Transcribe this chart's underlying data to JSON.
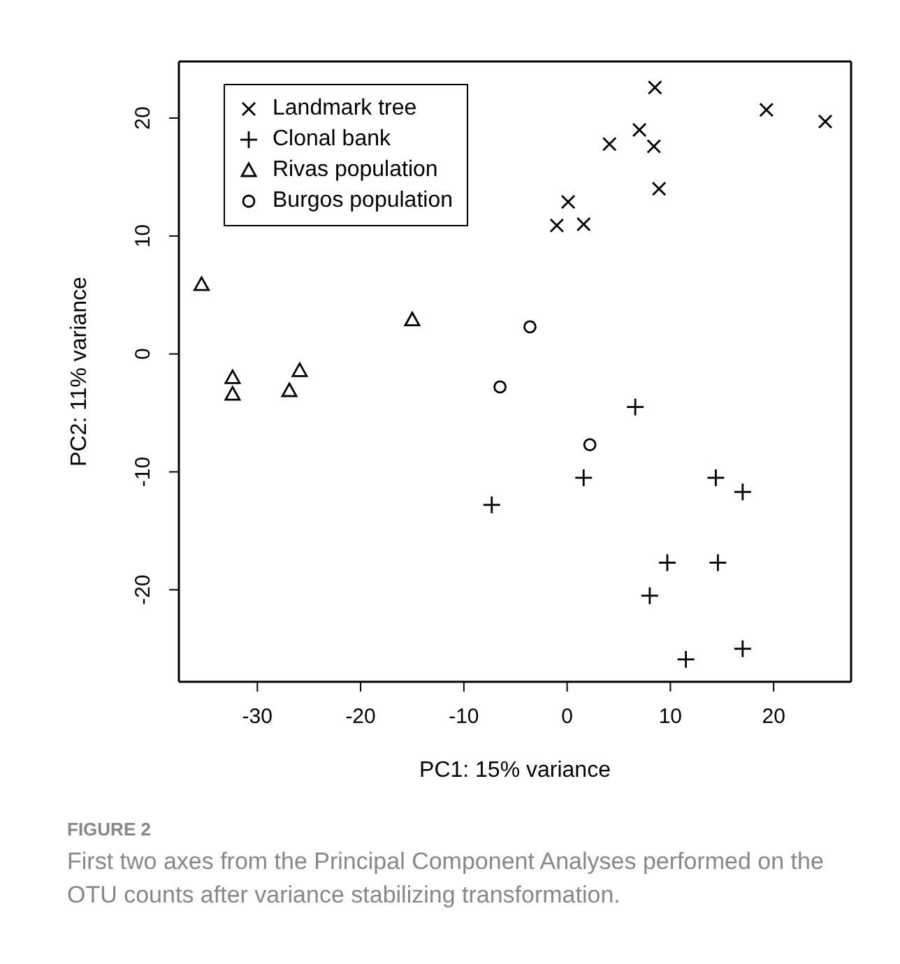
{
  "chart_data": {
    "type": "scatter",
    "xlabel": "PC1: 15% variance",
    "ylabel": "PC2: 11% variance",
    "xlim": [
      -37.6,
      27.5
    ],
    "ylim": [
      -27.8,
      24.8
    ],
    "xticks": [
      -30,
      -20,
      -10,
      0,
      10,
      20
    ],
    "yticks": [
      -20,
      -10,
      0,
      10,
      20
    ],
    "legend": "top left",
    "series": [
      {
        "name": "Landmark tree",
        "color": "#000000",
        "marker": "cross",
        "x": [
          8.5,
          19.3,
          25.0,
          7.0,
          4.1,
          8.4,
          8.9,
          0.1,
          -1.0,
          1.6
        ],
        "values": [
          22.6,
          20.7,
          19.7,
          19.0,
          17.8,
          17.6,
          14.0,
          12.9,
          10.9,
          11.0
        ]
      },
      {
        "name": "Clonal bank",
        "color": "#000000",
        "marker": "plus",
        "x": [
          6.6,
          1.6,
          -7.3,
          14.4,
          17.0,
          9.7,
          14.6,
          8.0,
          11.5,
          17.0
        ],
        "values": [
          -4.5,
          -10.5,
          -12.8,
          -10.5,
          -11.7,
          -17.7,
          -17.7,
          -20.5,
          -25.9,
          -25.0
        ]
      },
      {
        "name": "Rivas population",
        "color": "#000000",
        "marker": "triangle",
        "x": [
          -35.4,
          -15.0,
          -32.4,
          -32.4,
          -25.9,
          -26.9
        ],
        "values": [
          5.9,
          2.9,
          -2.0,
          -3.4,
          -1.4,
          -3.1
        ]
      },
      {
        "name": "Burgos population",
        "color": "#000000",
        "marker": "circle",
        "x": [
          -3.6,
          -6.5,
          2.2
        ],
        "values": [
          2.3,
          -2.8,
          -7.7
        ]
      }
    ],
    "annotations": [
      "FIGURE 2",
      "First two axes from the Principal Component Analyses performed on the OTU counts after variance stabilizing transformation."
    ]
  }
}
